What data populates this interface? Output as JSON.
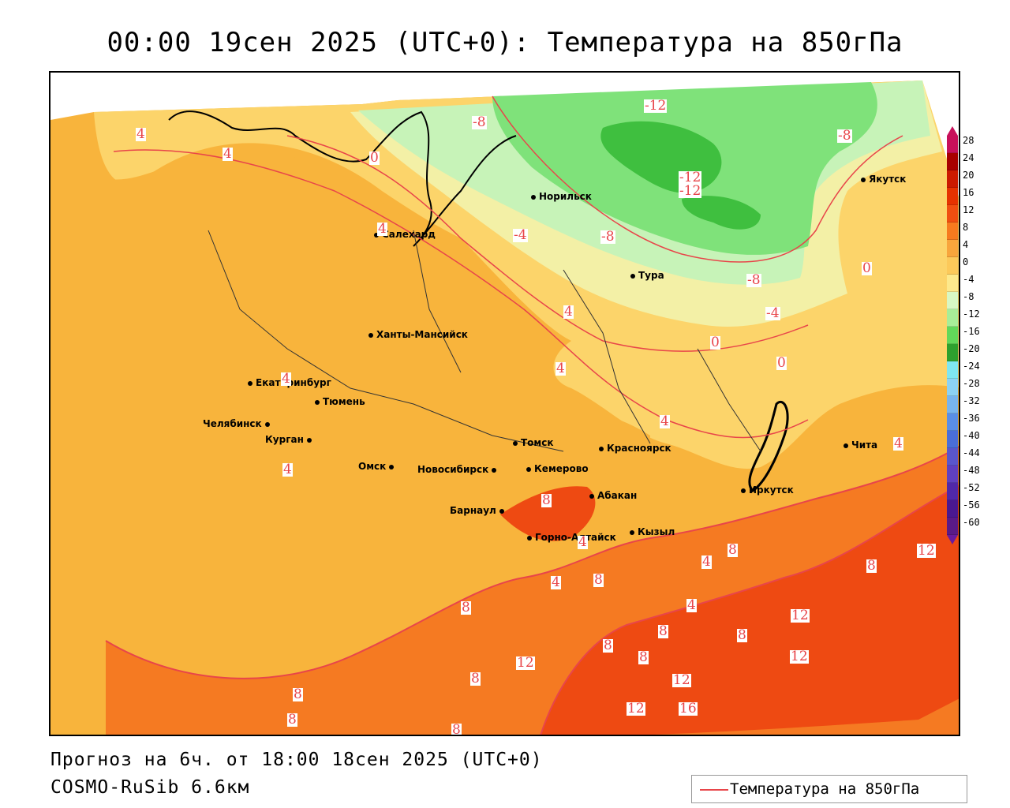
{
  "title": "00:00 19сен 2025 (UTC+0): Температура на 850гПа",
  "footer": {
    "forecast": "Прогноз на 6ч. от 18:00 18сен 2025 (UTC+0)",
    "model": "COSMO-RuSib 6.6км"
  },
  "legend": {
    "label": "Температура на 850гПа",
    "line_color": "#e8454a"
  },
  "colorbar": {
    "labels": [
      "28",
      "24",
      "20",
      "16",
      "12",
      "8",
      "4",
      "0",
      "-4",
      "-8",
      "-12",
      "-16",
      "-20",
      "-24",
      "-28",
      "-32",
      "-36",
      "-40",
      "-44",
      "-48",
      "-52",
      "-56",
      "-60"
    ],
    "colors": [
      "#c8105a",
      "#a80000",
      "#cc1a00",
      "#e63200",
      "#f04e10",
      "#f77a1e",
      "#f8a53c",
      "#fcc95a",
      "#fde98c",
      "#d8f7c4",
      "#a8ee98",
      "#62d85a",
      "#2ea02e",
      "#7fe6f0",
      "#8cd2f4",
      "#78b4ee",
      "#5a8ee6",
      "#4a6ed8",
      "#5a56cc",
      "#6040c0",
      "#5028a8",
      "#4a1890",
      "#5a1a88"
    ]
  },
  "cities": [
    {
      "name": "Якутск"
    },
    {
      "name": "Норильск"
    },
    {
      "name": "Салехард"
    },
    {
      "name": "Тура"
    },
    {
      "name": "Ханты-Мансийск"
    },
    {
      "name": "Екатеринбург"
    },
    {
      "name": "Тюмень"
    },
    {
      "name": "Челябинск"
    },
    {
      "name": "Курган"
    },
    {
      "name": "Омск"
    },
    {
      "name": "Новосибирск"
    },
    {
      "name": "Томск"
    },
    {
      "name": "Кемерово"
    },
    {
      "name": "Красноярск"
    },
    {
      "name": "Абакан"
    },
    {
      "name": "Барнаул"
    },
    {
      "name": "Горно-Алтайск"
    },
    {
      "name": "Кызыл"
    },
    {
      "name": "Иркутск"
    },
    {
      "name": "Чита"
    }
  ],
  "contour_labels": [
    "4",
    "4",
    "0",
    "4",
    "-12",
    "-8",
    "-8",
    "-12",
    "-12",
    "-4",
    "-8",
    "-8",
    "0",
    "-4",
    "4",
    "4",
    "0",
    "0",
    "4",
    "4",
    "4",
    "4",
    "8",
    "4",
    "4",
    "8",
    "8",
    "4",
    "12",
    "8",
    "8",
    "12",
    "4",
    "8",
    "8",
    "8",
    "12",
    "8",
    "12",
    "8",
    "12",
    "16",
    "12",
    "8",
    "8",
    "8",
    "12"
  ]
}
